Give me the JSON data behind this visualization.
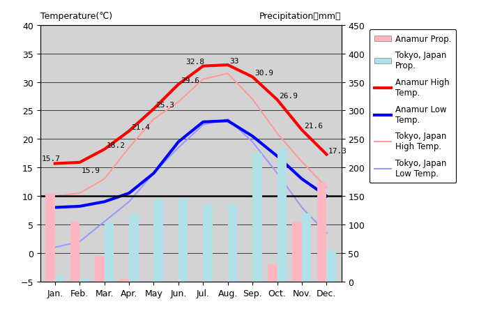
{
  "months": [
    "Jan.",
    "Feb.",
    "Mar.",
    "Apr.",
    "May",
    "Jun.",
    "Jul.",
    "Aug.",
    "Sep.",
    "Oct.",
    "Nov.",
    "Dec."
  ],
  "anamur_high": [
    15.7,
    15.9,
    18.2,
    21.4,
    25.3,
    29.6,
    32.8,
    33.0,
    30.9,
    26.9,
    21.6,
    17.3
  ],
  "anamur_low": [
    8.0,
    8.2,
    9.0,
    10.5,
    14.0,
    19.5,
    23.0,
    23.2,
    20.5,
    17.0,
    13.0,
    10.0
  ],
  "tokyo_high": [
    10.0,
    10.5,
    13.0,
    18.5,
    23.5,
    26.5,
    30.5,
    31.5,
    27.0,
    21.0,
    16.0,
    11.5
  ],
  "tokyo_low": [
    1.0,
    2.0,
    5.5,
    9.0,
    14.0,
    18.5,
    22.5,
    23.5,
    19.5,
    14.0,
    8.0,
    3.5
  ],
  "anamur_precip_mm": [
    155,
    105,
    45,
    5,
    0,
    0,
    0,
    0,
    0,
    30,
    105,
    175
  ],
  "tokyo_precip_mm": [
    10,
    5,
    105,
    120,
    145,
    145,
    135,
    135,
    225,
    235,
    120,
    55
  ],
  "background_color": "#d3d3d3",
  "anamur_precip_color": "#ffb6c1",
  "tokyo_precip_color": "#b0e0e8",
  "anamur_high_color": "#ff0000",
  "anamur_low_color": "#0000ff",
  "tokyo_high_color": "#ff9999",
  "tokyo_low_color": "#9999ff",
  "ylim_temp": [
    -5,
    40
  ],
  "ylim_precip": [
    0,
    450
  ],
  "title_left": "Temperature(℃)",
  "title_right": "Precipitation（mm）",
  "anamur_high_labels": [
    15.7,
    15.9,
    18.2,
    21.4,
    25.3,
    29.6,
    32.8,
    33,
    30.9,
    26.9,
    21.6,
    17.3
  ],
  "legend_labels": [
    "Anamur Prop.",
    "Tokyo, Japan\nProp.",
    "Anamur High\nTemp.",
    "Anamur Low\nTemp.",
    "Tokyo, Japan\nHigh Temp.",
    "Tokyo, Japan\nLow Temp."
  ]
}
